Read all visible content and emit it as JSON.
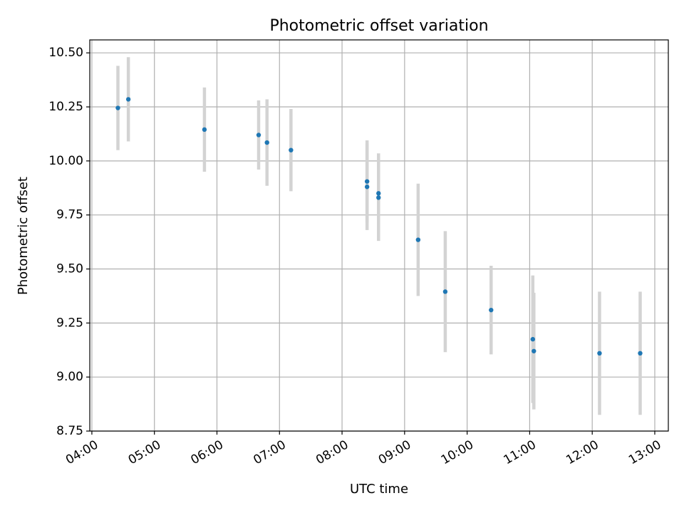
{
  "chart_data": {
    "type": "scatter",
    "title": "Photometric offset variation",
    "xlabel": "UTC time",
    "ylabel": "Photometric offset",
    "x_ticks": [
      "04:00",
      "05:00",
      "06:00",
      "07:00",
      "08:00",
      "09:00",
      "10:00",
      "11:00",
      "12:00",
      "13:00"
    ],
    "y_ticks": [
      "8.75",
      "9.00",
      "9.25",
      "9.50",
      "9.75",
      "10.00",
      "10.25",
      "10.50"
    ],
    "xlim": [
      "03:58",
      "13:13"
    ],
    "ylim": [
      8.75,
      10.56
    ],
    "grid": true,
    "legend": false,
    "point_color": "#1f77b4",
    "errorbar_color": "#d3d3d3",
    "points": [
      {
        "time": "04:25",
        "y": 10.245,
        "yerr": 0.195
      },
      {
        "time": "04:35",
        "y": 10.285,
        "yerr": 0.195
      },
      {
        "time": "05:48",
        "y": 10.145,
        "yerr": 0.195
      },
      {
        "time": "06:40",
        "y": 10.12,
        "yerr": 0.16
      },
      {
        "time": "06:48",
        "y": 10.085,
        "yerr": 0.2
      },
      {
        "time": "07:11",
        "y": 10.05,
        "yerr": 0.19
      },
      {
        "time": "08:24",
        "y": 9.905,
        "yerr": 0.19
      },
      {
        "time": "08:24",
        "y": 9.88,
        "yerr": 0.2
      },
      {
        "time": "08:35",
        "y": 9.85,
        "yerr": 0.185
      },
      {
        "time": "08:35",
        "y": 9.83,
        "yerr": 0.2
      },
      {
        "time": "09:13",
        "y": 9.635,
        "yerr": 0.26
      },
      {
        "time": "09:39",
        "y": 9.395,
        "yerr": 0.28
      },
      {
        "time": "10:23",
        "y": 9.31,
        "yerr": 0.205
      },
      {
        "time": "11:03",
        "y": 9.175,
        "yerr": 0.295
      },
      {
        "time": "11:04",
        "y": 9.12,
        "yerr": 0.27
      },
      {
        "time": "12:07",
        "y": 9.11,
        "yerr": 0.285
      },
      {
        "time": "12:46",
        "y": 9.11,
        "yerr": 0.285
      }
    ]
  }
}
